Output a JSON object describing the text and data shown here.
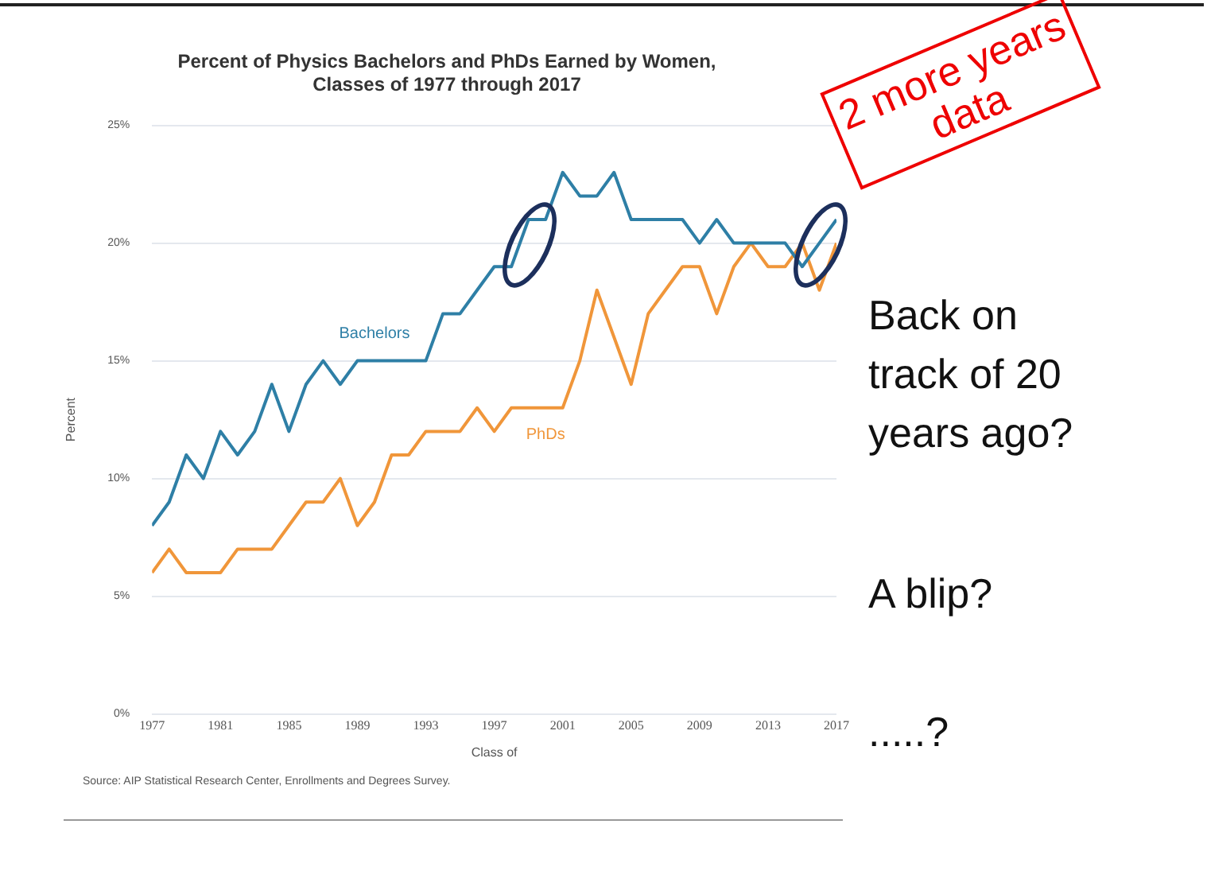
{
  "chart_data": {
    "type": "line",
    "title": "Percent of Physics Bachelors and PhDs Earned by Women,\nClasses of 1977 through 2017",
    "xlabel": "Class of",
    "ylabel": "Percent",
    "x": [
      1977,
      1978,
      1979,
      1980,
      1981,
      1982,
      1983,
      1984,
      1985,
      1986,
      1987,
      1988,
      1989,
      1990,
      1991,
      1992,
      1993,
      1994,
      1995,
      1996,
      1997,
      1998,
      1999,
      2000,
      2001,
      2002,
      2003,
      2004,
      2005,
      2006,
      2007,
      2008,
      2009,
      2010,
      2011,
      2012,
      2013,
      2014,
      2015,
      2016,
      2017
    ],
    "series": [
      {
        "name": "Bachelors",
        "color": "#2e7fa6",
        "values": [
          8,
          9,
          11,
          10,
          12,
          11,
          12,
          14,
          12,
          14,
          15,
          14,
          15,
          15,
          15,
          15,
          15,
          17,
          17,
          18,
          19,
          19,
          21,
          21,
          23,
          22,
          22,
          23,
          21,
          21,
          21,
          21,
          20,
          21,
          20,
          20,
          20,
          20,
          19,
          20,
          21
        ]
      },
      {
        "name": "PhDs",
        "color": "#f0963a",
        "values": [
          6,
          7,
          6,
          6,
          6,
          7,
          7,
          7,
          8,
          9,
          9,
          10,
          8,
          9,
          11,
          11,
          12,
          12,
          12,
          13,
          12,
          13,
          13,
          13,
          13,
          15,
          18,
          16,
          14,
          17,
          18,
          19,
          19,
          17,
          19,
          20,
          19,
          19,
          20,
          18,
          20
        ]
      }
    ],
    "xlim": [
      1977,
      2017
    ],
    "xticks": [
      1977,
      1981,
      1985,
      1989,
      1993,
      1997,
      2001,
      2005,
      2009,
      2013,
      2017
    ],
    "ylim": [
      0,
      25
    ],
    "yticks": [
      {
        "value": 0,
        "label": "0%"
      },
      {
        "value": 5,
        "label": "5%"
      },
      {
        "value": 10,
        "label": "10%"
      },
      {
        "value": 15,
        "label": "15%"
      },
      {
        "value": 20,
        "label": "20%"
      },
      {
        "value": 25,
        "label": "25%"
      }
    ],
    "grid": "y",
    "legend": false,
    "marker": "none",
    "line_style": "solid",
    "annotations": [
      "Source: AIP Statistical Research Center, Enrollments and Degrees Survey.",
      "2 more years data",
      "Back on track of 20 years ago?",
      "A blip?",
      ".....?"
    ]
  }
}
